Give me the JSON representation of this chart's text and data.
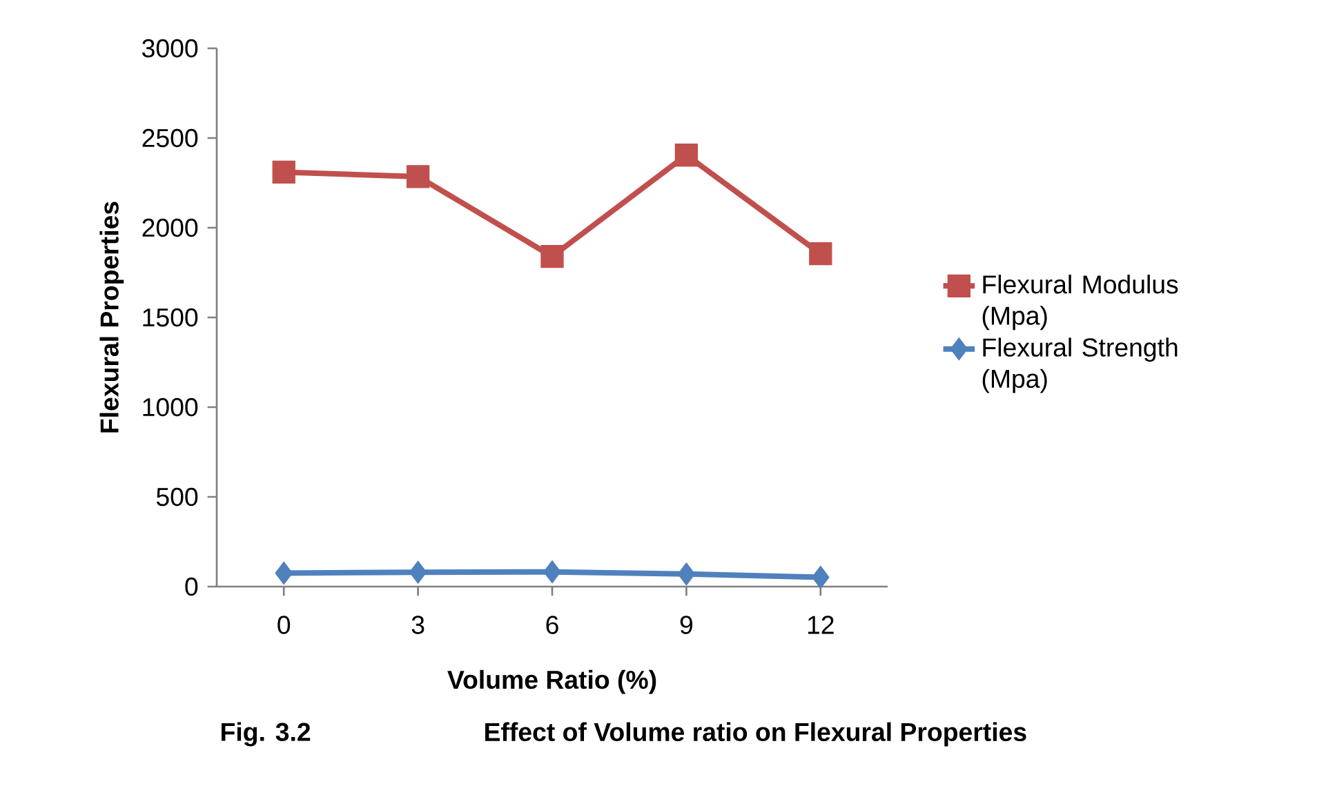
{
  "chart_data": {
    "type": "line",
    "categories": [
      "0",
      "3",
      "6",
      "9",
      "12"
    ],
    "series": [
      {
        "name": "Flexural Modulus (Mpa)",
        "color": "#c0504d",
        "marker": "square",
        "values": [
          2310,
          2285,
          1840,
          2405,
          1855
        ]
      },
      {
        "name": "Flexural Strength (Mpa)",
        "color": "#4f81bd",
        "marker": "diamond",
        "values": [
          75,
          80,
          82,
          70,
          52
        ]
      }
    ],
    "xlabel": "Volume Ratio (%)",
    "ylabel": "Flexural Properties",
    "ylim": [
      0,
      3000
    ],
    "yticks": [
      0,
      500,
      1000,
      1500,
      2000,
      2500,
      3000
    ],
    "legend": "right",
    "grid": false,
    "annotations": [
      "Fig. 3.2",
      "Effect of Volume ratio on Flexural Properties"
    ]
  }
}
